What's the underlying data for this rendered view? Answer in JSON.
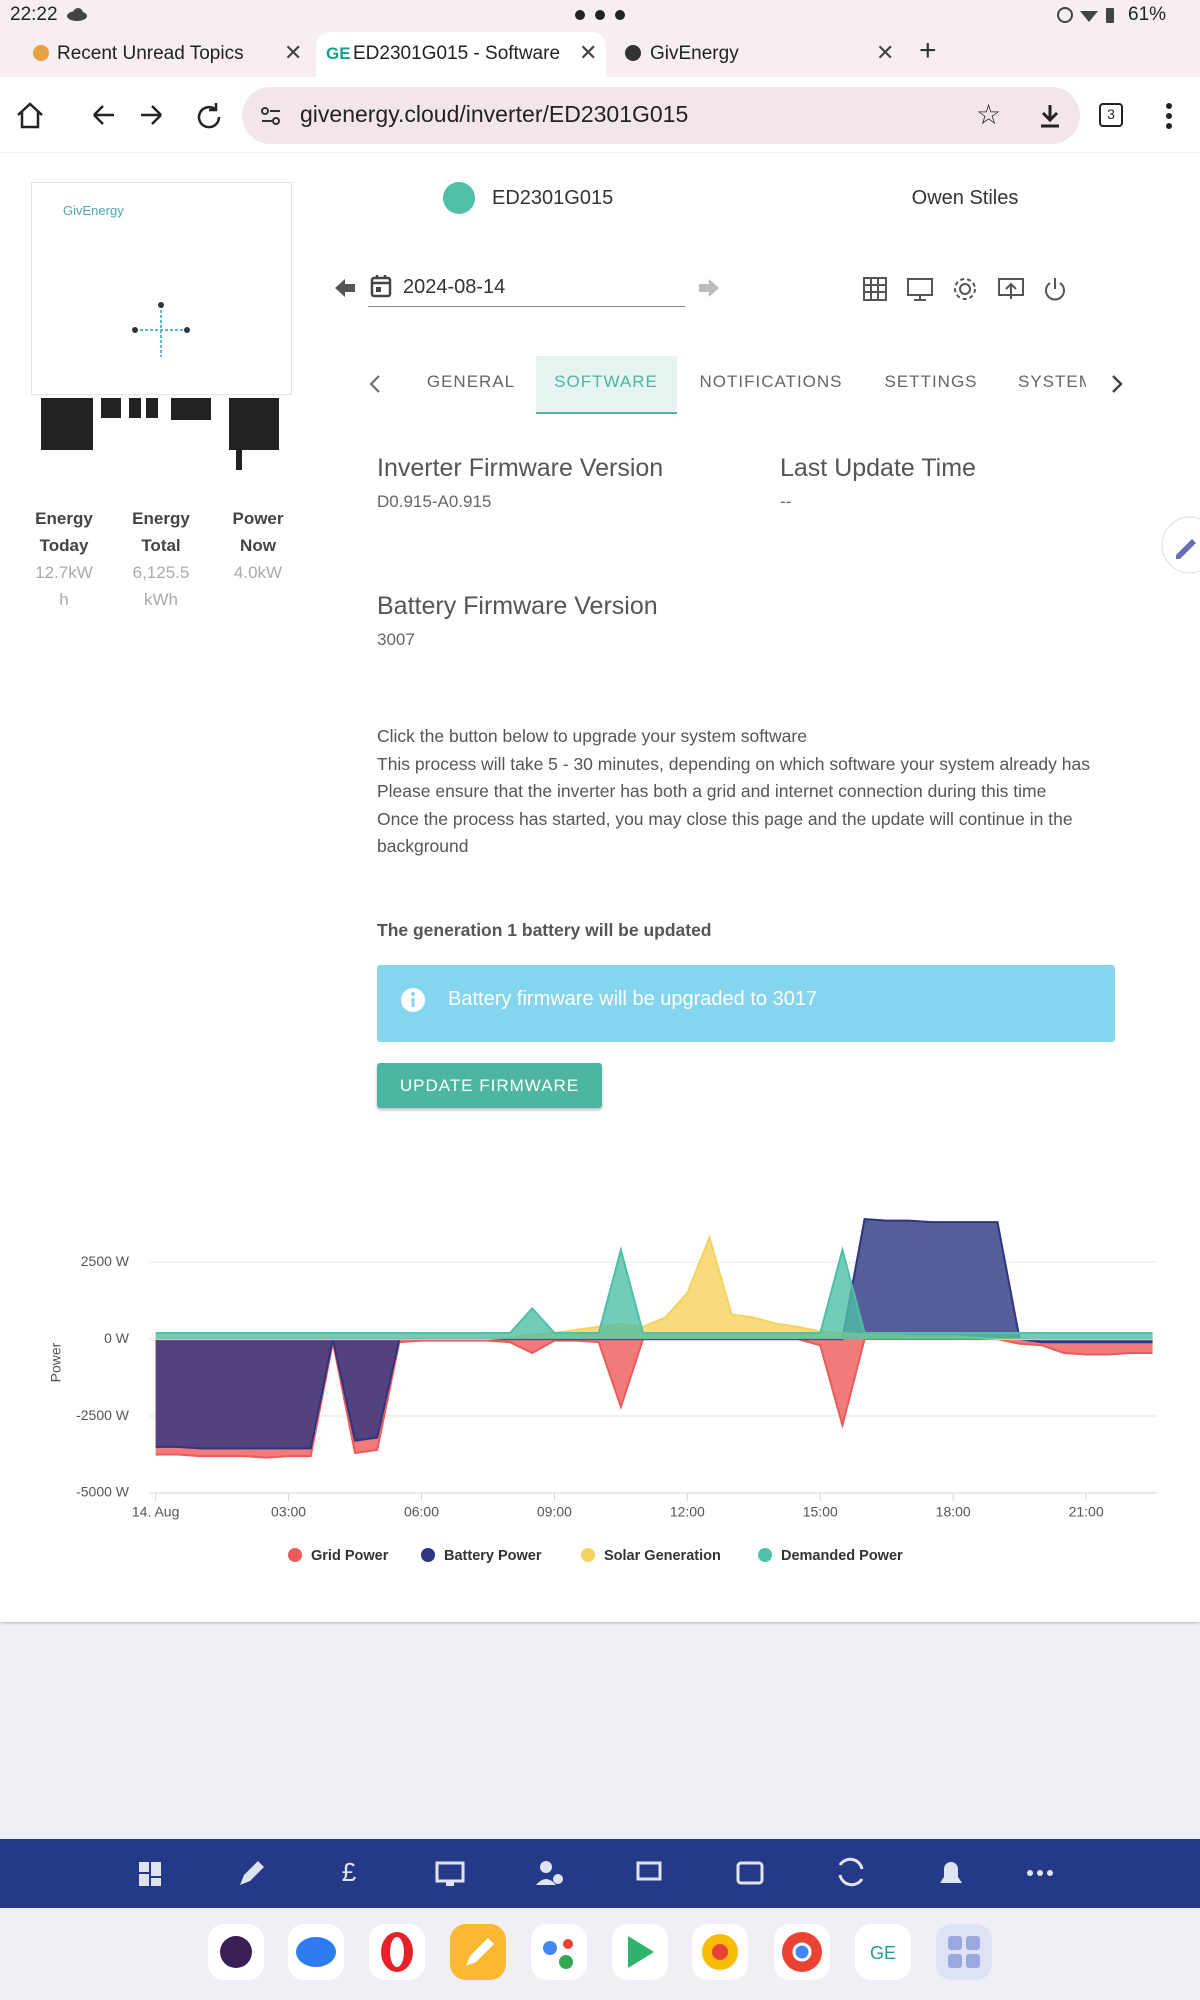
{
  "status_bar": {
    "time": "22:22",
    "battery": "61%"
  },
  "browser": {
    "tabs": [
      "Recent Unread Topics",
      "ED2301G015 - Software",
      "GivEnergy"
    ],
    "url": "givenergy.cloud/inverter/ED2301G015",
    "tab_count": "3"
  },
  "inverter": {
    "logo": "GivEnergy",
    "serial": "ED2301G015",
    "owner": "Owen Stiles",
    "date": "2024-08-14",
    "stats": [
      {
        "label": "Energy Today",
        "value": "12.7kWh"
      },
      {
        "label": "Energy Total",
        "value": "6,125.5kWh"
      },
      {
        "label": "Power Now",
        "value": "4.0kW"
      }
    ]
  },
  "tabs": [
    "GENERAL",
    "SOFTWARE",
    "NOTIFICATIONS",
    "SETTINGS",
    "SYSTEM"
  ],
  "software": {
    "inverter_firmware": {
      "label": "Inverter Firmware Version",
      "value": "D0.915-A0.915"
    },
    "last_update": {
      "label": "Last Update Time",
      "value": "--"
    },
    "battery_firmware": {
      "label": "Battery Firmware Version",
      "value": "3007"
    },
    "instructions": [
      "Click the button below to upgrade your system software",
      "This process will take 5 - 30 minutes, depending on which software your system already has",
      "Please ensure that the inverter has both a grid and internet connection during this time",
      "Once the process has started, you may close this page and the update will continue in the background"
    ],
    "battery_note": "The generation 1 battery will be updated",
    "alert": "Battery firmware will be upgraded to 3017",
    "button": "UPDATE FIRMWARE"
  },
  "chart": {
    "type": "area",
    "y_label": "Power",
    "x": [
      0,
      0.5,
      1,
      1.5,
      2,
      2.5,
      3,
      3.5,
      4,
      4.5,
      5,
      5.5,
      6,
      6.5,
      7,
      7.5,
      8,
      8.5,
      9,
      9.5,
      10,
      10.5,
      11,
      11.5,
      12,
      12.5,
      13,
      13.5,
      14,
      14.5,
      15,
      15.5,
      16,
      16.5,
      17,
      17.5,
      18,
      18.5,
      19,
      19.5,
      20,
      20.5,
      21,
      21.5,
      22,
      22.5
    ],
    "xlim": [
      -0.15,
      22.6
    ],
    "xticks": [
      {
        "value": 0,
        "label": "14. Aug"
      },
      {
        "value": 3,
        "label": "03:00"
      },
      {
        "value": 6,
        "label": "06:00"
      },
      {
        "value": 9,
        "label": "09:00"
      },
      {
        "value": 12,
        "label": "12:00"
      },
      {
        "value": 15,
        "label": "15:00"
      },
      {
        "value": 18,
        "label": "18:00"
      },
      {
        "value": 21,
        "label": "21:00"
      }
    ],
    "ylim": [
      -5000,
      4000
    ],
    "yticks": [
      {
        "value": -5000,
        "label": "-5000 W"
      },
      {
        "value": -2500,
        "label": "-2500 W"
      },
      {
        "value": 0,
        "label": "0 W"
      },
      {
        "value": 2500,
        "label": "2500 W"
      }
    ],
    "grid": true,
    "series": [
      {
        "name": "Grid Power",
        "color": "#ee5a5a",
        "values": [
          -3750,
          -3750,
          -3800,
          -3800,
          -3800,
          -3850,
          -3800,
          -3800,
          -100,
          -3700,
          -3600,
          -100,
          -50,
          -50,
          -50,
          -50,
          -100,
          -450,
          -50,
          -50,
          -100,
          -2200,
          0,
          0,
          0,
          0,
          0,
          0,
          0,
          0,
          -200,
          -2800,
          0,
          0,
          0,
          0,
          0,
          0,
          0,
          -150,
          -200,
          -450,
          -500,
          -500,
          -450,
          -450
        ]
      },
      {
        "name": "Battery Power",
        "color": "#2d3580",
        "values": [
          -3500,
          -3500,
          -3550,
          -3550,
          -3550,
          -3550,
          -3550,
          -3550,
          0,
          -3300,
          -3200,
          0,
          0,
          0,
          0,
          0,
          0,
          0,
          0,
          0,
          0,
          0,
          0,
          0,
          0,
          0,
          0,
          0,
          0,
          0,
          0,
          0,
          3900,
          3850,
          3850,
          3800,
          3800,
          3800,
          3800,
          0,
          -100,
          -100,
          -100,
          -100,
          -100,
          -100
        ]
      },
      {
        "name": "Solar Generation",
        "color": "#f5d25e",
        "values": [
          0,
          0,
          0,
          0,
          0,
          0,
          0,
          0,
          0,
          0,
          0,
          0,
          0,
          0,
          0,
          0,
          50,
          150,
          200,
          300,
          400,
          500,
          400,
          700,
          1500,
          3300,
          800,
          700,
          500,
          400,
          250,
          200,
          150,
          150,
          100,
          100,
          100,
          50,
          0,
          0,
          0,
          0,
          0,
          0,
          0,
          0
        ]
      },
      {
        "name": "Demanded Power",
        "color": "#4fbfa5",
        "values": [
          200,
          200,
          200,
          200,
          200,
          200,
          200,
          200,
          200,
          200,
          200,
          200,
          200,
          200,
          200,
          200,
          200,
          1000,
          200,
          200,
          200,
          2900,
          200,
          200,
          200,
          200,
          200,
          200,
          200,
          200,
          200,
          2900,
          200,
          200,
          200,
          200,
          200,
          200,
          200,
          200,
          200,
          200,
          200,
          200,
          200,
          200
        ]
      }
    ]
  }
}
